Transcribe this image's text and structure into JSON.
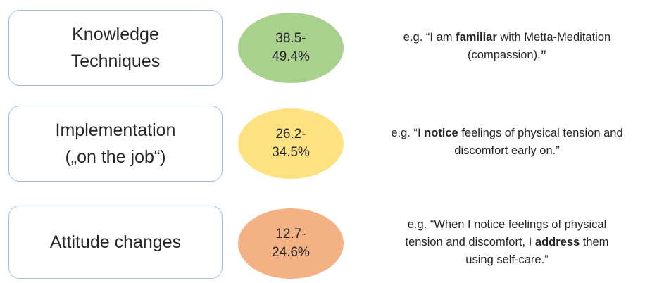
{
  "rows": [
    {
      "category": [
        "Knowledge",
        "Techniques"
      ],
      "range": [
        "38.5-",
        "49.4%"
      ],
      "color": "#a9d18e",
      "example": {
        "prefix": "e.g. “I am ",
        "bold": "familiar",
        "suffix_a": " with Metta-Meditation",
        "suffix_b": "(compassion).",
        "closing_bold": "”"
      }
    },
    {
      "category": [
        "Implementation",
        "(„on the job“)"
      ],
      "range": [
        "26.2-",
        "34.5%"
      ],
      "color": "#ffe17f",
      "example": {
        "prefix": "e.g. “I ",
        "bold": "notice",
        "suffix_a": " feelings of physical tension and",
        "suffix_b": "discomfort early on.”"
      }
    },
    {
      "category": [
        "Attitude changes"
      ],
      "range": [
        "12.7-",
        "24.6%"
      ],
      "color": "#f4b183",
      "example": {
        "line1": "e.g. “When I notice feelings of physical",
        "prefix": "tension and discomfort, I ",
        "bold": "address",
        "suffix_a": " them",
        "suffix_b": "using self-care.”"
      }
    }
  ]
}
